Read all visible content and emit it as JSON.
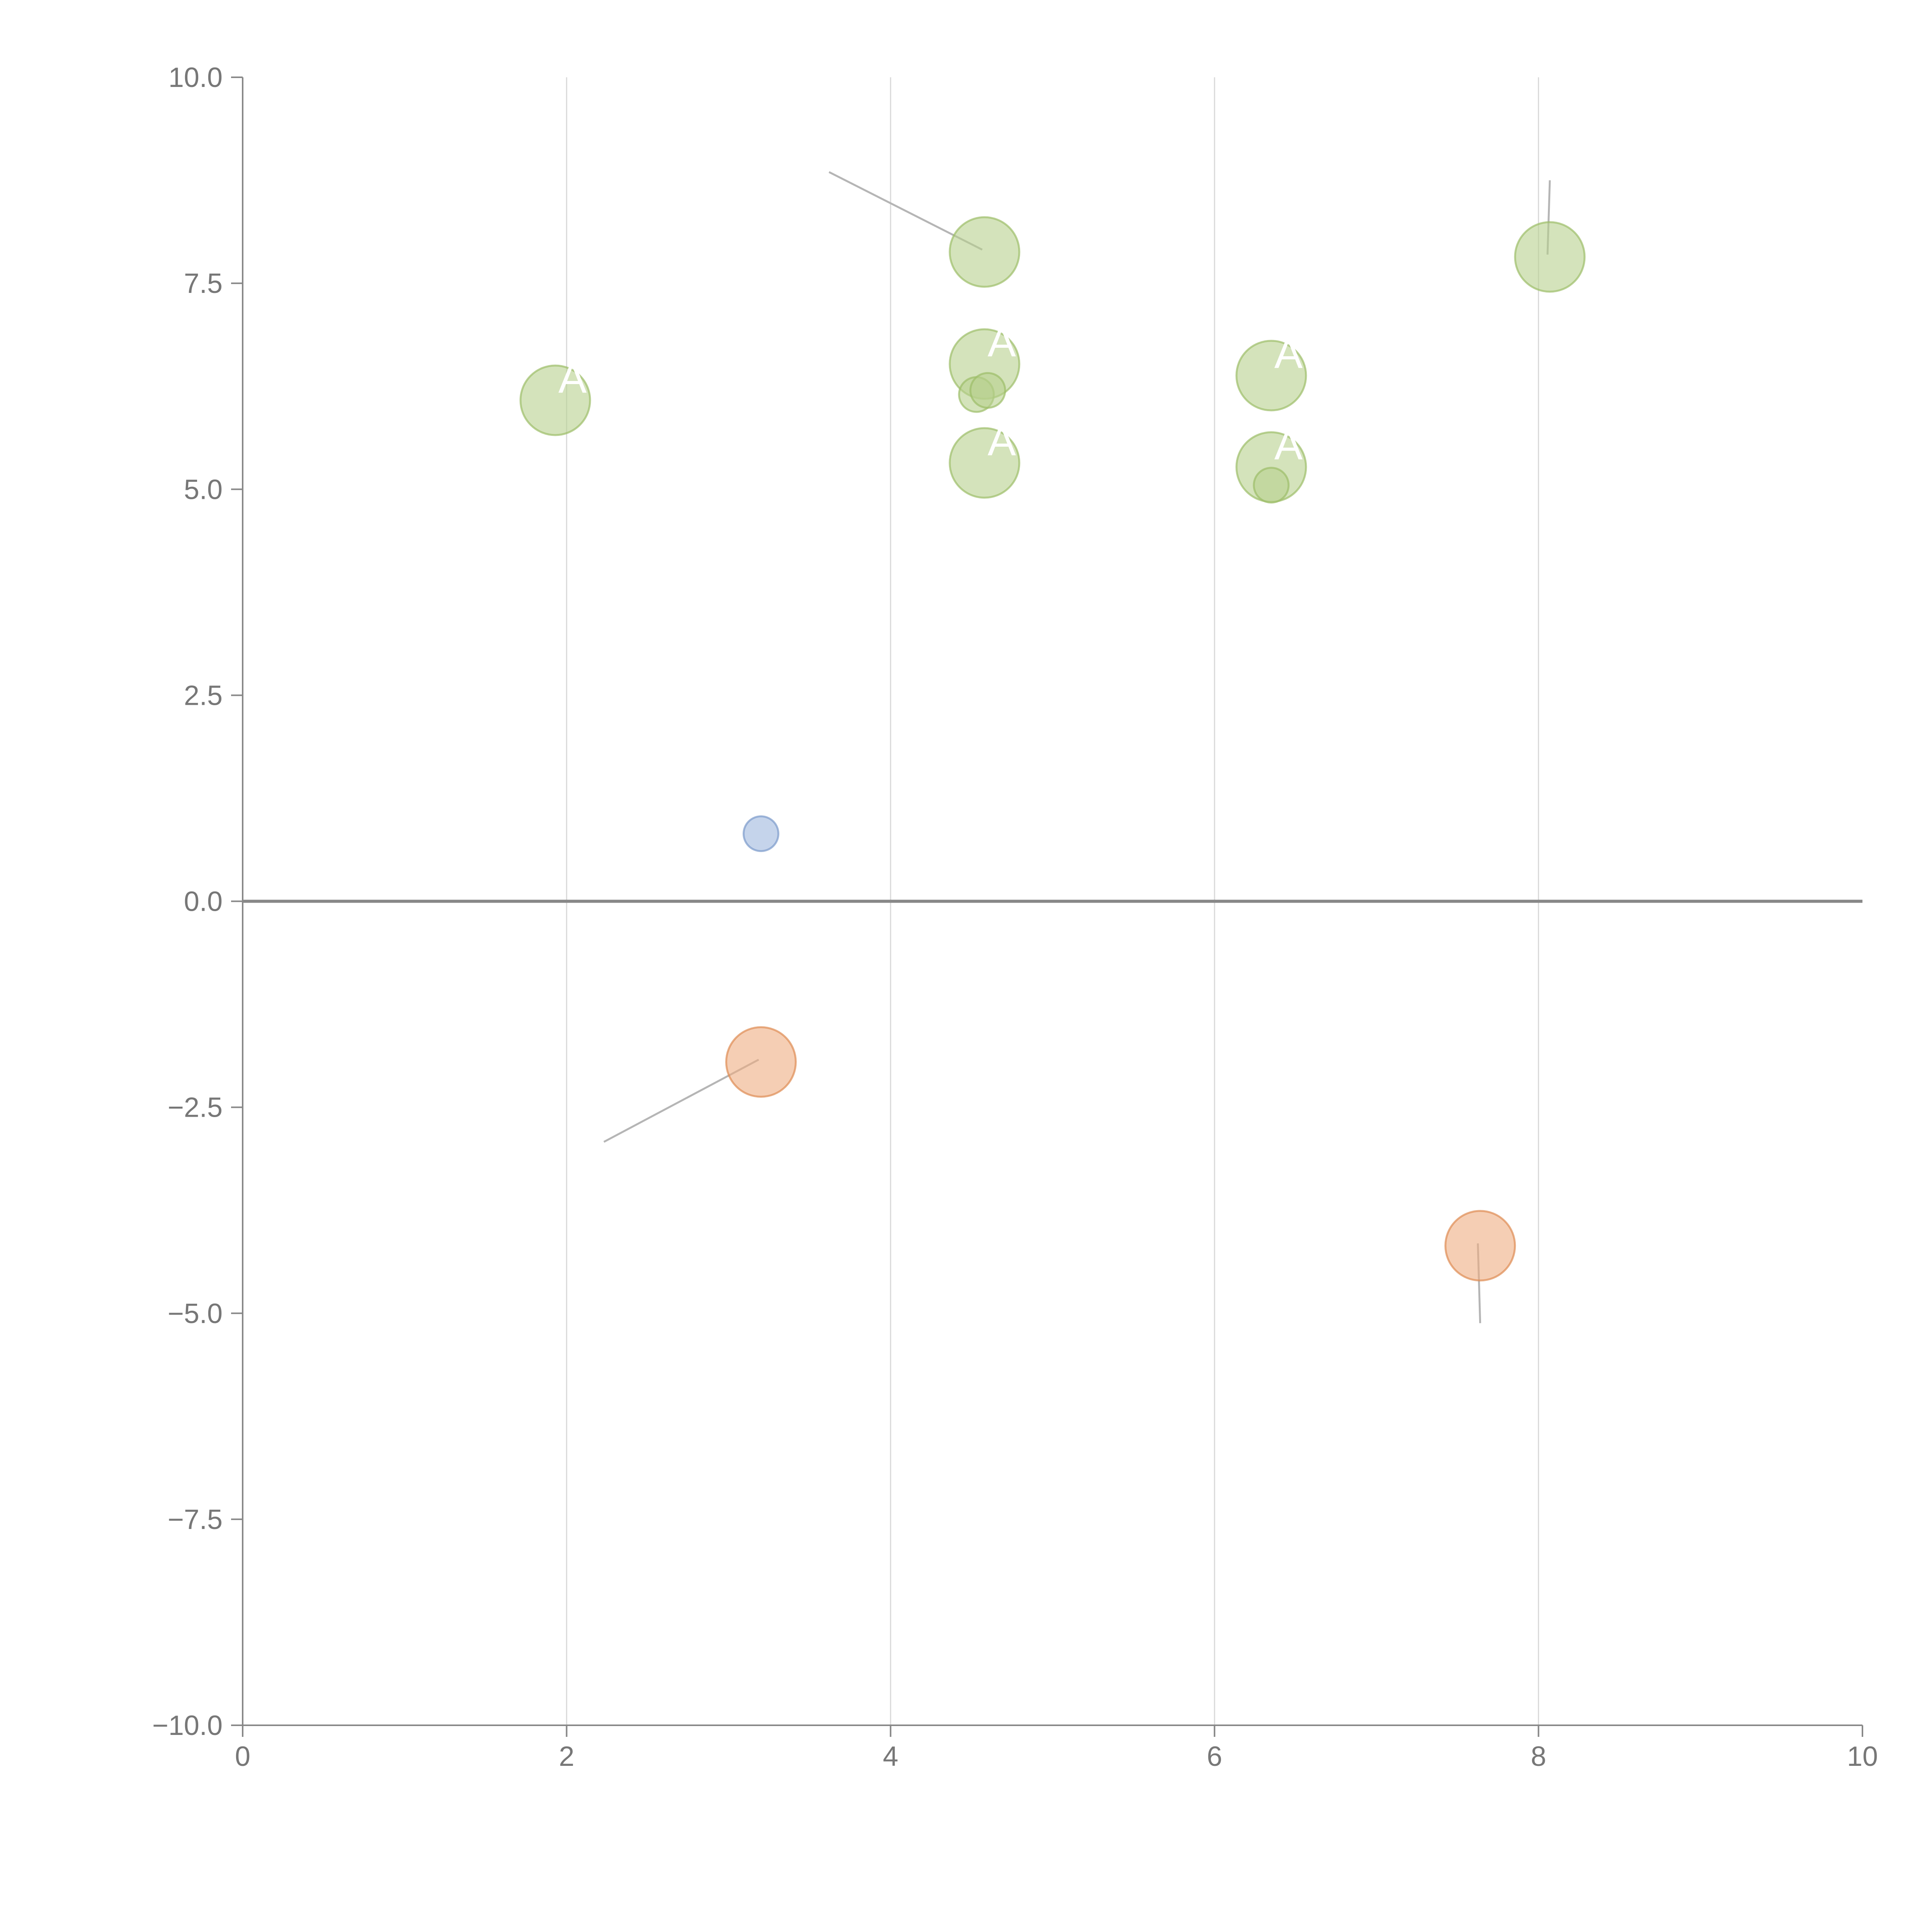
{
  "chart_data": {
    "type": "scatter",
    "title": "",
    "xlabel": "",
    "ylabel": "",
    "xlim": [
      0,
      10
    ],
    "ylim": [
      -10,
      10
    ],
    "grid": "vertical",
    "legend": "none",
    "x_ticks": [
      "0",
      "2",
      "4",
      "6",
      "8",
      "10"
    ],
    "x_tick_values": [
      0,
      2,
      4,
      6,
      8,
      10
    ],
    "y_ticks": [
      "10.0",
      "7.5",
      "5.0",
      "2.5",
      "0.0",
      "−2.5",
      "−5.0",
      "−7.5",
      "−10.0"
    ],
    "y_tick_values": [
      10,
      7.5,
      5,
      2.5,
      0,
      -2.5,
      -5,
      -7.5,
      -10
    ],
    "colors": {
      "green_fill": "#b8d08e",
      "green_stroke": "#9cbd68",
      "orange_fill": "#eeae82",
      "orange_stroke": "#de8c52",
      "blue_fill": "#9fb8dd",
      "blue_stroke": "#7a9acb"
    },
    "series": [
      {
        "name": "green",
        "points": [
          {
            "x": 4.58,
            "y": 7.88,
            "size": 9,
            "label": "",
            "leader_to": [
              3.62,
              8.85
            ]
          },
          {
            "x": 8.07,
            "y": 7.82,
            "size": 9,
            "label": "",
            "leader_to": [
              8.07,
              8.75
            ]
          },
          {
            "x": 1.93,
            "y": 6.08,
            "size": 9,
            "label": "A"
          },
          {
            "x": 4.58,
            "y": 6.52,
            "size": 9,
            "label": "A"
          },
          {
            "x": 4.53,
            "y": 6.15,
            "size": 4.5,
            "label": ""
          },
          {
            "x": 4.6,
            "y": 6.2,
            "size": 4.5,
            "label": ""
          },
          {
            "x": 6.35,
            "y": 6.38,
            "size": 9,
            "label": "A"
          },
          {
            "x": 4.58,
            "y": 5.32,
            "size": 9,
            "label": "A"
          },
          {
            "x": 6.35,
            "y": 5.27,
            "size": 9,
            "label": "A"
          },
          {
            "x": 6.35,
            "y": 5.05,
            "size": 4.5,
            "label": ""
          }
        ]
      },
      {
        "name": "orange",
        "points": [
          {
            "x": 3.2,
            "y": -1.95,
            "size": 9,
            "label": "",
            "leader_to": [
              2.23,
              -2.92
            ]
          },
          {
            "x": 7.64,
            "y": -4.18,
            "size": 9,
            "label": "",
            "leader_to": [
              7.64,
              -5.12
            ]
          }
        ]
      },
      {
        "name": "blue",
        "points": [
          {
            "x": 3.2,
            "y": 0.82,
            "size": 4.5,
            "label": ""
          }
        ]
      }
    ]
  }
}
